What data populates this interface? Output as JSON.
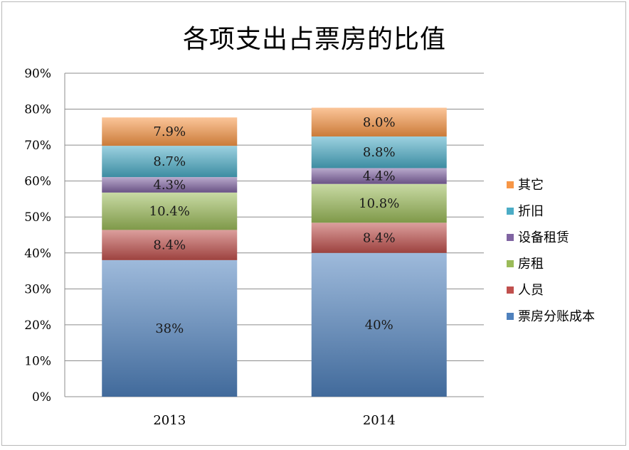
{
  "chart_data": {
    "type": "bar",
    "stacked": true,
    "title": "各项支出占票房的比值",
    "categories": [
      "2013",
      "2014"
    ],
    "ylim": [
      0,
      90
    ],
    "yticks": [
      0,
      10,
      20,
      30,
      40,
      50,
      60,
      70,
      80,
      90
    ],
    "ytick_suffix": "%",
    "grid": true,
    "legend_position": "right",
    "series": [
      {
        "name": "票房分账成本",
        "values": [
          38,
          40
        ],
        "labels": [
          "38%",
          "40%"
        ],
        "color": "#4f81bd"
      },
      {
        "name": "人员",
        "values": [
          8.4,
          8.4
        ],
        "labels": [
          "8.4%",
          "8.4%"
        ],
        "color": "#c0504d"
      },
      {
        "name": "房租",
        "values": [
          10.4,
          10.8
        ],
        "labels": [
          "10.4%",
          "10.8%"
        ],
        "color": "#9bbb59"
      },
      {
        "name": "设备租赁",
        "values": [
          4.3,
          4.4
        ],
        "labels": [
          "4.3%",
          "4.4%"
        ],
        "color": "#8064a2"
      },
      {
        "name": "折旧",
        "values": [
          8.7,
          8.8
        ],
        "labels": [
          "8.7%",
          "8.8%"
        ],
        "color": "#4bacc6"
      },
      {
        "name": "其它",
        "values": [
          7.9,
          8.0
        ],
        "labels": [
          "7.9%",
          "8.0%"
        ],
        "color": "#f79646"
      }
    ]
  }
}
